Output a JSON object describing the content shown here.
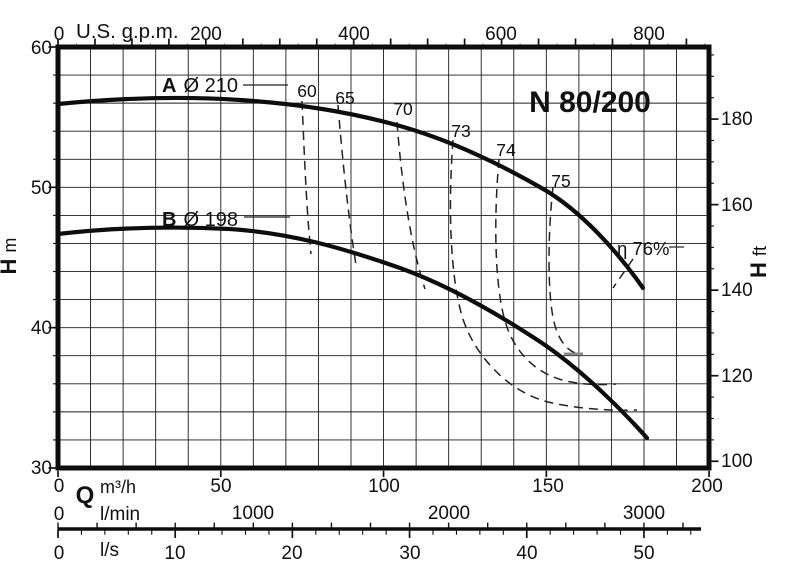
{
  "title": "N 80/200",
  "top_axis": {
    "zero": "0",
    "unit": "U.S. g.p.m.",
    "labels": [
      "200",
      "400",
      "600",
      "800"
    ]
  },
  "left_axis": {
    "labels": [
      "60",
      "50",
      "40",
      "30"
    ],
    "symbol": "H",
    "unit": "m"
  },
  "right_axis": {
    "labels": [
      "180",
      "160",
      "140",
      "120",
      "100"
    ],
    "symbol": "H",
    "unit": "ft"
  },
  "bottom_axis_m3h": {
    "zero": "0",
    "symbol": "Q",
    "unit": "m³/h",
    "labels": [
      "50",
      "100",
      "150",
      "200"
    ]
  },
  "bottom_axis_lmin": {
    "zero": "0",
    "unit": "l/min",
    "labels": [
      "1000",
      "2000",
      "3000"
    ]
  },
  "bottom_axis_ls": {
    "zero": "0",
    "unit": "l/s",
    "labels": [
      "10",
      "20",
      "30",
      "40",
      "50"
    ]
  },
  "curve_a": {
    "id": "A",
    "label": "Ø 210"
  },
  "curve_b": {
    "id": "B",
    "label": "Ø 198"
  },
  "efficiency_labels": {
    "e60": "60",
    "e65": "65",
    "e70": "70",
    "e73": "73",
    "e74": "74",
    "e75": "75",
    "e76": "η 76%"
  },
  "chart_data": {
    "type": "line",
    "title": "N 80/200",
    "xlabel": "Q",
    "x_units": [
      "U.S. g.p.m.",
      "m³/h",
      "l/min",
      "l/s"
    ],
    "ylabel": "H",
    "y_units": [
      "m",
      "ft"
    ],
    "x_axis_top_gpm": {
      "ticks": [
        0,
        200,
        400,
        600,
        800
      ],
      "minor_tick_step": 25,
      "range": [
        0,
        880
      ]
    },
    "x_axis_m3h": {
      "ticks": [
        0,
        50,
        100,
        150,
        200
      ],
      "range": [
        0,
        200
      ],
      "grid_step": 10
    },
    "x_axis_lmin": {
      "ticks": [
        0,
        1000,
        2000,
        3000
      ],
      "minor_tick_step": 200
    },
    "x_axis_ls": {
      "ticks": [
        0,
        10,
        20,
        30,
        40,
        50
      ],
      "minor_tick_step": 2
    },
    "y_axis_m": {
      "ticks": [
        60,
        50,
        40,
        30
      ],
      "range": [
        30,
        60
      ],
      "grid_step": 2
    },
    "y_axis_ft": {
      "ticks": [
        180,
        160,
        140,
        120,
        100
      ],
      "minor_tick_step": 5
    },
    "grid": true,
    "legend": "none",
    "series": [
      {
        "name": "A Ø 210",
        "impeller_diameter_mm": 210,
        "x_m3h": [
          0,
          20,
          40,
          60,
          80,
          100,
          120,
          140,
          160,
          180
        ],
        "y_m": [
          56.0,
          56.4,
          56.5,
          56.3,
          55.7,
          54.6,
          53.0,
          50.7,
          47.4,
          42.8
        ]
      },
      {
        "name": "B Ø 198",
        "impeller_diameter_mm": 198,
        "x_m3h": [
          0,
          20,
          40,
          60,
          80,
          100,
          120,
          140,
          160,
          180
        ],
        "y_m": [
          46.7,
          47.1,
          47.2,
          46.8,
          45.8,
          44.4,
          42.4,
          39.8,
          36.5,
          32.3
        ]
      }
    ],
    "efficiency_contours_pct": [
      60,
      65,
      70,
      73,
      74,
      75,
      76
    ],
    "efficiency_contour_anchor_q_m3h": [
      75,
      86,
      104,
      121,
      135,
      152,
      172
    ]
  }
}
